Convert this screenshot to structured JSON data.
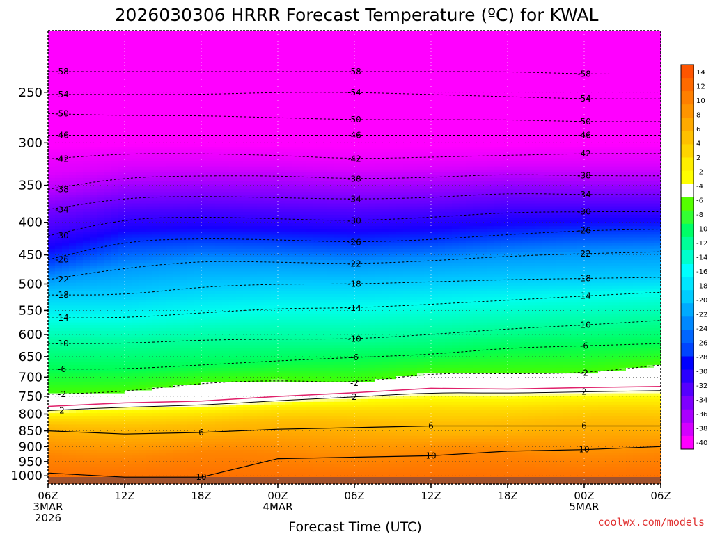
{
  "chart_data": {
    "type": "heatmap",
    "title": "2026030306 HRRR Forecast Temperature (ºC) for KWAL",
    "xlabel": "Forecast Time (UTC)",
    "ylabel": "",
    "credit": "coolwx.com/models",
    "y_scale": "log",
    "y_reversed": true,
    "ylim": [
      1030,
      200
    ],
    "y_ticks": [
      250,
      300,
      350,
      400,
      450,
      500,
      550,
      600,
      650,
      700,
      750,
      800,
      850,
      900,
      950,
      1000
    ],
    "xlim": [
      0,
      48
    ],
    "x_ticks": [
      {
        "hour": 0,
        "lines": [
          "06Z",
          "3MAR",
          "2026"
        ]
      },
      {
        "hour": 6,
        "lines": [
          "12Z"
        ]
      },
      {
        "hour": 12,
        "lines": [
          "18Z"
        ]
      },
      {
        "hour": 18,
        "lines": [
          "00Z",
          "4MAR"
        ]
      },
      {
        "hour": 24,
        "lines": [
          "06Z"
        ]
      },
      {
        "hour": 30,
        "lines": [
          "12Z"
        ]
      },
      {
        "hour": 36,
        "lines": [
          "18Z"
        ]
      },
      {
        "hour": 42,
        "lines": [
          "00Z",
          "5MAR"
        ]
      },
      {
        "hour": 48,
        "lines": [
          "06Z"
        ]
      }
    ],
    "grid": true,
    "colorbar": {
      "position": "right",
      "labels": [
        "14",
        "12",
        "10",
        "8",
        "6",
        "4",
        "2",
        "-2",
        "-4",
        "-6",
        "-8",
        "-10",
        "-12",
        "-14",
        "-16",
        "-18",
        "-20",
        "-22",
        "-24",
        "-26",
        "-28",
        "-30",
        "-32",
        "-34",
        "-36",
        "-38",
        "-40"
      ],
      "colors": [
        "#ff5500",
        "#ff6a00",
        "#ff7f00",
        "#ff9400",
        "#ffaa00",
        "#ffc000",
        "#ffd500",
        "#ffee00",
        "#ffff00",
        "#ffffff",
        "#55ff00",
        "#33ff33",
        "#00ff66",
        "#00ff99",
        "#00ffcc",
        "#00ffff",
        "#00e6ff",
        "#00ccff",
        "#00aaff",
        "#0088ff",
        "#0066ff",
        "#0044ff",
        "#0000ff",
        "#2a00ff",
        "#5500ff",
        "#7f00ff",
        "#aa00ff",
        "#d400ff",
        "#ff00ff"
      ]
    },
    "isotherm_levels": [
      {
        "temp": -58,
        "values": [
          232,
          232,
          232,
          232,
          232,
          232,
          232,
          234,
          234
        ]
      },
      {
        "temp": -54,
        "values": [
          252,
          252,
          252,
          250,
          250,
          252,
          254,
          256,
          256
        ]
      },
      {
        "temp": -50,
        "values": [
          270,
          272,
          272,
          274,
          276,
          276,
          276,
          278,
          278
        ]
      },
      {
        "temp": -46,
        "values": [
          292,
          292,
          292,
          292,
          292,
          292,
          292,
          292,
          292
        ]
      },
      {
        "temp": -42,
        "values": [
          318,
          312,
          312,
          314,
          318,
          316,
          314,
          312,
          312
        ]
      },
      {
        "temp": -38,
        "values": [
          355,
          340,
          338,
          338,
          342,
          340,
          336,
          338,
          338
        ]
      },
      {
        "temp": -34,
        "values": [
          382,
          366,
          364,
          366,
          368,
          366,
          360,
          362,
          362
        ]
      },
      {
        "temp": -30,
        "values": [
          420,
          395,
          392,
          395,
          398,
          393,
          386,
          385,
          385
        ]
      },
      {
        "temp": -26,
        "values": [
          458,
          428,
          424,
          426,
          430,
          426,
          418,
          412,
          410
        ]
      },
      {
        "temp": -22,
        "values": [
          492,
          472,
          460,
          462,
          465,
          460,
          452,
          448,
          445
        ]
      },
      {
        "temp": -18,
        "values": [
          520,
          520,
          505,
          500,
          500,
          496,
          492,
          490,
          488
        ]
      },
      {
        "temp": -14,
        "values": [
          565,
          565,
          555,
          546,
          545,
          538,
          530,
          522,
          515
        ]
      },
      {
        "temp": -10,
        "values": [
          620,
          620,
          612,
          610,
          610,
          600,
          588,
          580,
          570
        ]
      },
      {
        "temp": -6,
        "values": [
          680,
          680,
          670,
          660,
          652,
          645,
          630,
          625,
          620
        ]
      },
      {
        "temp": -2,
        "values": [
          745,
          738,
          715,
          708,
          715,
          690,
          692,
          690,
          670
        ]
      },
      {
        "temp": 2,
        "values": [
          790,
          780,
          775,
          762,
          752,
          740,
          742,
          738,
          735
        ]
      }
    ],
    "contour_labels": [
      "-58",
      "-54",
      "-50",
      "-46",
      "-42",
      "-38",
      "-34",
      "-30",
      "-26",
      "-22",
      "-18",
      "-14",
      "-10",
      "-6",
      "-2",
      "2",
      "6",
      "10"
    ]
  },
  "colors": {
    "below_ground": "#a0522d",
    "freezing_line": "#e0206a",
    "contour_line": "#000000",
    "credit": "#e03030"
  }
}
